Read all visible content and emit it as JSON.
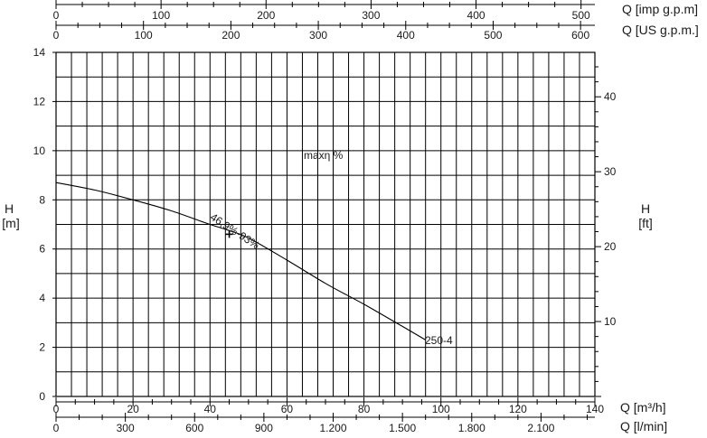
{
  "chart_data": {
    "type": "line",
    "title": "",
    "annotation": "maxη %",
    "axes": {
      "x_bottom_1": {
        "label": "Q [m³/h]",
        "range": [
          0,
          140
        ],
        "ticks": [
          "0",
          "20",
          "40",
          "60",
          "80",
          "100",
          "120",
          "140"
        ],
        "values": [
          0,
          20,
          40,
          60,
          80,
          100,
          120,
          140
        ]
      },
      "x_bottom_2": {
        "label": "Q [l/min]",
        "range": [
          0,
          2333.33
        ],
        "ticks": [
          "0",
          "300",
          "600",
          "900",
          "1.200",
          "1.500",
          "1.800",
          "2.100"
        ],
        "values": [
          0,
          300,
          600,
          900,
          1200,
          1500,
          1800,
          2100
        ]
      },
      "x_top_1": {
        "label": "Q [imp g.p.m]",
        "range": [
          0,
          513.2
        ],
        "ticks": [
          "0",
          "100",
          "200",
          "300",
          "400",
          "500"
        ],
        "values": [
          0,
          100,
          200,
          300,
          400,
          500
        ]
      },
      "x_top_2": {
        "label": "Q [US g.p.m.]",
        "range": [
          0,
          616.4
        ],
        "ticks": [
          "0",
          "100",
          "200",
          "300",
          "400",
          "500",
          "600"
        ],
        "values": [
          0,
          100,
          200,
          300,
          400,
          500,
          600
        ]
      },
      "y_left": {
        "label_top": "H",
        "label_bottom": "[m]",
        "range": [
          0,
          14
        ],
        "ticks": [
          "0",
          "2",
          "4",
          "6",
          "8",
          "10",
          "12",
          "14"
        ],
        "values": [
          0,
          2,
          4,
          6,
          8,
          10,
          12,
          14
        ]
      },
      "y_right": {
        "label_top": "H",
        "label_bottom": "[ft]",
        "range": [
          0,
          45.93
        ],
        "ticks": [
          "10",
          "20",
          "30",
          "40"
        ],
        "values": [
          10,
          20,
          30,
          40
        ]
      }
    },
    "grid": true,
    "series": [
      {
        "name": "250-4",
        "x": [
          0,
          10,
          20,
          30,
          40,
          45,
          50,
          60,
          70,
          80,
          90,
          96
        ],
        "y": [
          8.7,
          8.4,
          8.0,
          7.55,
          7.0,
          6.75,
          6.45,
          5.55,
          4.6,
          3.75,
          2.85,
          2.3
        ]
      }
    ],
    "best_efficiency_point": {
      "x": 45,
      "y": 6.6,
      "label": "46,9%-93%"
    }
  }
}
